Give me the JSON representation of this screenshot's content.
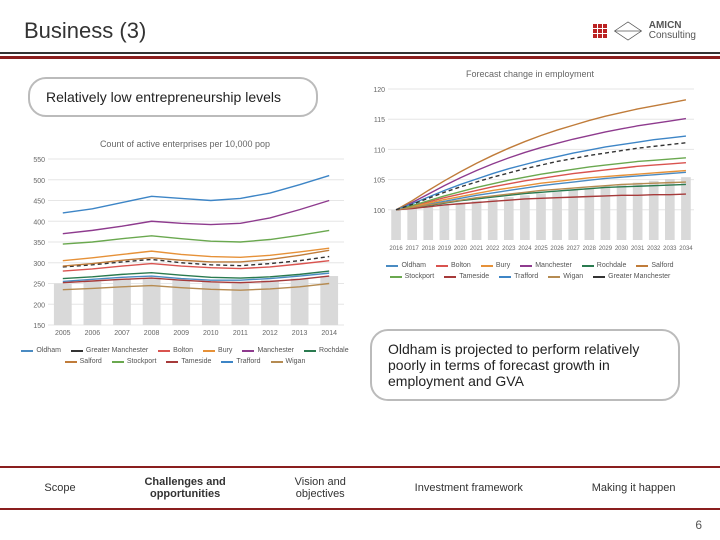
{
  "header": {
    "title": "Business (3)",
    "logo_brand": "AMICN",
    "logo_sub": "Consulting"
  },
  "callout_left": "Relatively low entrepreneurship levels",
  "callout_right": "Oldham is projected to perform relatively poorly in terms of forecast growth in employment and GVA",
  "chart_left": {
    "type": "line+bar",
    "title": "Count of active enterprises per 10,000 pop",
    "title_fontsize": 9,
    "background_color": "#ffffff",
    "grid_color": "#e6e6e6",
    "x_categories": [
      "2005",
      "2006",
      "2007",
      "2008",
      "2009",
      "2010",
      "2011",
      "2012",
      "2013",
      "2014"
    ],
    "x_fontsize": 7,
    "ylim": [
      150,
      550
    ],
    "ytick_step": 50,
    "y_fontsize": 7,
    "bar_color": "#d9d9d9",
    "bar_values": [
      250,
      255,
      260,
      262,
      258,
      255,
      255,
      258,
      262,
      268
    ],
    "series": [
      {
        "name": "Oldham",
        "color": "#4a8bc2",
        "dash": "",
        "values": [
          255,
          260,
          265,
          268,
          262,
          258,
          258,
          262,
          268,
          275
        ]
      },
      {
        "name": "Greater Manchester",
        "color": "#333333",
        "dash": "4,3",
        "values": [
          290,
          295,
          302,
          308,
          300,
          295,
          293,
          298,
          305,
          315
        ]
      },
      {
        "name": "Bolton",
        "color": "#d9534f",
        "dash": "",
        "values": [
          280,
          285,
          292,
          298,
          292,
          288,
          286,
          290,
          297,
          305
        ]
      },
      {
        "name": "Bury",
        "color": "#e69138",
        "dash": "",
        "values": [
          305,
          312,
          320,
          328,
          320,
          315,
          313,
          318,
          326,
          335
        ]
      },
      {
        "name": "Manchester",
        "color": "#8e3b8e",
        "dash": "",
        "values": [
          370,
          378,
          388,
          400,
          395,
          392,
          395,
          408,
          428,
          450
        ]
      },
      {
        "name": "Rochdale",
        "color": "#2a7a4f",
        "dash": "",
        "values": [
          262,
          266,
          272,
          276,
          270,
          265,
          263,
          266,
          272,
          280
        ]
      },
      {
        "name": "Salford",
        "color": "#c07c3a",
        "dash": "",
        "values": [
          292,
          298,
          306,
          312,
          306,
          302,
          302,
          308,
          318,
          330
        ]
      },
      {
        "name": "Stockport",
        "color": "#6aa84f",
        "dash": "",
        "values": [
          345,
          350,
          358,
          365,
          358,
          352,
          350,
          356,
          366,
          378
        ]
      },
      {
        "name": "Tameside",
        "color": "#a63a3a",
        "dash": "",
        "values": [
          252,
          256,
          260,
          263,
          258,
          254,
          252,
          255,
          260,
          268
        ]
      },
      {
        "name": "Trafford",
        "color": "#3d85c6",
        "dash": "",
        "values": [
          420,
          430,
          445,
          460,
          455,
          450,
          455,
          468,
          488,
          510
        ]
      },
      {
        "name": "Wigan",
        "color": "#b58b52",
        "dash": "",
        "values": [
          235,
          238,
          242,
          245,
          240,
          236,
          234,
          237,
          242,
          250
        ]
      }
    ]
  },
  "chart_right": {
    "type": "line+bar",
    "title": "Forecast change in employment",
    "title_fontsize": 9,
    "background_color": "#ffffff",
    "grid_color": "#e6e6e6",
    "x_categories": [
      "2016",
      "2017",
      "2018",
      "2019",
      "2020",
      "2021",
      "2022",
      "2023",
      "2024",
      "2025",
      "2026",
      "2027",
      "2028",
      "2029",
      "2030",
      "2031",
      "2032",
      "2033",
      "2034"
    ],
    "x_fontsize": 6,
    "ylim": [
      95,
      120
    ],
    "yticks": [
      100,
      105,
      110,
      115,
      120
    ],
    "y_fontsize": 7,
    "bar_color": "#d9d9d9",
    "bar_values": [
      100,
      100.3,
      100.6,
      100.9,
      101.2,
      101.5,
      101.8,
      102.1,
      102.4,
      102.7,
      103.0,
      103.3,
      103.6,
      103.9,
      104.2,
      104.5,
      104.8,
      105.1,
      105.4
    ],
    "series": [
      {
        "name": "Oldham",
        "color": "#4a8bc2",
        "dash": "",
        "values": [
          100,
          100.4,
          100.9,
          101.4,
          101.9,
          102.4,
          102.8,
          103.2,
          103.6,
          104.0,
          104.3,
          104.6,
          104.9,
          105.2,
          105.4,
          105.6,
          105.8,
          106.0,
          106.2
        ]
      },
      {
        "name": "Bolton",
        "color": "#d9534f",
        "dash": "",
        "values": [
          100,
          100.6,
          101.3,
          102.0,
          102.6,
          103.2,
          103.8,
          104.3,
          104.8,
          105.2,
          105.6,
          106.0,
          106.3,
          106.6,
          106.9,
          107.2,
          107.4,
          107.6,
          107.8
        ]
      },
      {
        "name": "Bury",
        "color": "#e69138",
        "dash": "",
        "values": [
          100,
          100.5,
          101.1,
          101.7,
          102.2,
          102.7,
          103.2,
          103.6,
          104.0,
          104.4,
          104.7,
          105.0,
          105.3,
          105.5,
          105.7,
          105.9,
          106.1,
          106.3,
          106.5
        ]
      },
      {
        "name": "Manchester",
        "color": "#8e3b8e",
        "dash": "",
        "values": [
          100,
          101.2,
          102.6,
          104.0,
          105.3,
          106.5,
          107.6,
          108.6,
          109.5,
          110.3,
          111.0,
          111.7,
          112.3,
          112.9,
          113.4,
          113.9,
          114.3,
          114.7,
          115.1
        ]
      },
      {
        "name": "Rochdale",
        "color": "#2a7a4f",
        "dash": "",
        "values": [
          100,
          100.3,
          100.7,
          101.1,
          101.5,
          101.8,
          102.1,
          102.4,
          102.7,
          102.9,
          103.1,
          103.3,
          103.5,
          103.7,
          103.8,
          103.9,
          104.0,
          104.1,
          104.2
        ]
      },
      {
        "name": "Salford",
        "color": "#c07c3a",
        "dash": "",
        "values": [
          100,
          101.5,
          103.2,
          104.8,
          106.3,
          107.7,
          109.0,
          110.2,
          111.3,
          112.3,
          113.2,
          114.0,
          114.8,
          115.5,
          116.1,
          116.7,
          117.2,
          117.7,
          118.2
        ]
      },
      {
        "name": "Stockport",
        "color": "#6aa84f",
        "dash": "",
        "values": [
          100,
          100.7,
          101.5,
          102.3,
          103.0,
          103.7,
          104.3,
          104.9,
          105.4,
          105.9,
          106.3,
          106.7,
          107.1,
          107.4,
          107.7,
          108.0,
          108.2,
          108.4,
          108.6
        ]
      },
      {
        "name": "Tameside",
        "color": "#a63a3a",
        "dash": "",
        "values": [
          100,
          100.2,
          100.5,
          100.8,
          101.0,
          101.2,
          101.4,
          101.6,
          101.8,
          101.9,
          102.0,
          102.1,
          102.2,
          102.3,
          102.4,
          102.4,
          102.5,
          102.5,
          102.6
        ]
      },
      {
        "name": "Trafford",
        "color": "#3d85c6",
        "dash": "",
        "values": [
          100,
          101.0,
          102.1,
          103.2,
          104.2,
          105.1,
          106.0,
          106.8,
          107.5,
          108.2,
          108.8,
          109.4,
          109.9,
          110.4,
          110.8,
          111.2,
          111.6,
          111.9,
          112.2
        ]
      },
      {
        "name": "Wigan",
        "color": "#b58b52",
        "dash": "",
        "values": [
          100,
          100.4,
          100.8,
          101.2,
          101.6,
          102.0,
          102.3,
          102.6,
          102.9,
          103.2,
          103.4,
          103.6,
          103.8,
          104.0,
          104.2,
          104.3,
          104.4,
          104.5,
          104.6
        ]
      },
      {
        "name": "Greater Manchester",
        "color": "#333333",
        "dash": "4,3",
        "values": [
          100,
          100.9,
          101.9,
          102.9,
          103.8,
          104.6,
          105.4,
          106.1,
          106.8,
          107.4,
          108.0,
          108.5,
          109.0,
          109.4,
          109.8,
          110.2,
          110.5,
          110.8,
          111.1
        ]
      }
    ]
  },
  "nav": {
    "items": [
      "Scope",
      "Challenges and opportunities",
      "Vision and objectives",
      "Investment framework",
      "Making it happen"
    ],
    "active_index": 1
  },
  "page_number": "6"
}
